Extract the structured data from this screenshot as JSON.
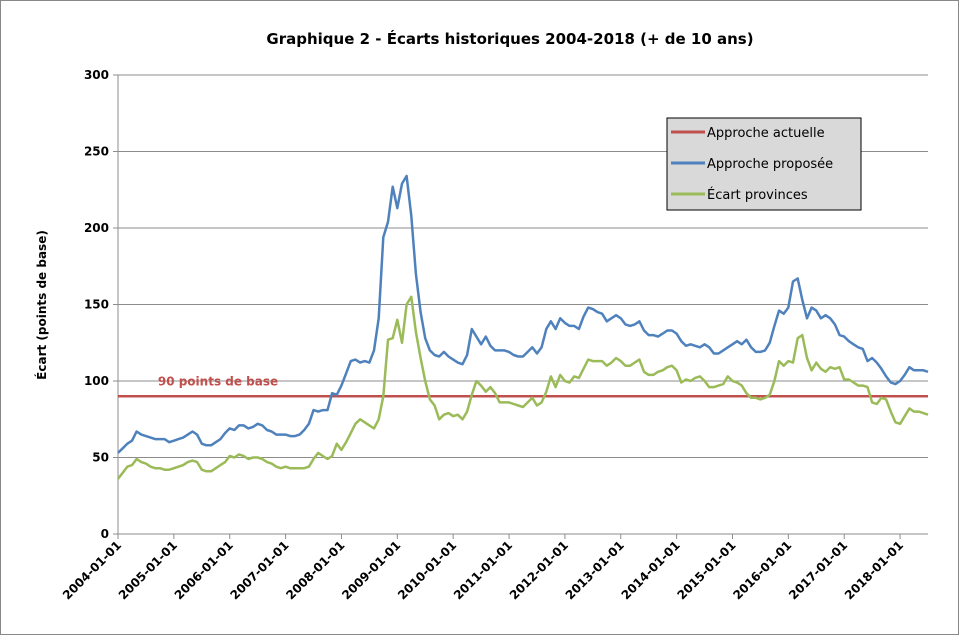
{
  "chart_data": {
    "type": "line",
    "title": "Graphique 2 - Écarts historiques 2004-2018 (+ de 10 ans)",
    "y_label": "Écart (points de base)",
    "annotation": "90 points de base",
    "categories": [
      "2004-01-01",
      null,
      null,
      null,
      null,
      null,
      null,
      null,
      null,
      null,
      null,
      null,
      "2005-01-01",
      null,
      null,
      null,
      null,
      null,
      null,
      null,
      null,
      null,
      null,
      null,
      "2006-01-01",
      null,
      null,
      null,
      null,
      null,
      null,
      null,
      null,
      null,
      null,
      null,
      "2007-01-01",
      null,
      null,
      null,
      null,
      null,
      null,
      null,
      null,
      null,
      null,
      null,
      "2008-01-01",
      null,
      null,
      null,
      null,
      null,
      null,
      null,
      null,
      null,
      null,
      null,
      "2009-01-01",
      null,
      null,
      null,
      null,
      null,
      null,
      null,
      null,
      null,
      null,
      null,
      "2010-01-01",
      null,
      null,
      null,
      null,
      null,
      null,
      null,
      null,
      null,
      null,
      null,
      "2011-01-01",
      null,
      null,
      null,
      null,
      null,
      null,
      null,
      null,
      null,
      null,
      null,
      "2012-01-01",
      null,
      null,
      null,
      null,
      null,
      null,
      null,
      null,
      null,
      null,
      null,
      "2013-01-01",
      null,
      null,
      null,
      null,
      null,
      null,
      null,
      null,
      null,
      null,
      null,
      "2014-01-01",
      null,
      null,
      null,
      null,
      null,
      null,
      null,
      null,
      null,
      null,
      null,
      "2015-01-01",
      null,
      null,
      null,
      null,
      null,
      null,
      null,
      null,
      null,
      null,
      null,
      "2016-01-01",
      null,
      null,
      null,
      null,
      null,
      null,
      null,
      null,
      null,
      null,
      null,
      "2017-01-01",
      null,
      null,
      null,
      null,
      null,
      null,
      null,
      null,
      null,
      null,
      null,
      "2018-01-01",
      null,
      null,
      null,
      null,
      null,
      null
    ],
    "series": [
      {
        "name": "Approche actuelle",
        "color": "#c0504d",
        "values": [
          90,
          90,
          90,
          90,
          90,
          90,
          90,
          90,
          90,
          90,
          90,
          90,
          90,
          90,
          90,
          90,
          90,
          90,
          90,
          90,
          90,
          90,
          90,
          90,
          90,
          90,
          90,
          90,
          90,
          90,
          90,
          90,
          90,
          90,
          90,
          90,
          90,
          90,
          90,
          90,
          90,
          90,
          90,
          90,
          90,
          90,
          90,
          90,
          90,
          90,
          90,
          90,
          90,
          90,
          90,
          90,
          90,
          90,
          90,
          90,
          90,
          90,
          90,
          90,
          90,
          90,
          90,
          90,
          90,
          90,
          90,
          90,
          90,
          90,
          90,
          90,
          90,
          90,
          90,
          90,
          90,
          90,
          90,
          90,
          90,
          90,
          90,
          90,
          90,
          90,
          90,
          90,
          90,
          90,
          90,
          90,
          90,
          90,
          90,
          90,
          90,
          90,
          90,
          90,
          90,
          90,
          90,
          90,
          90,
          90,
          90,
          90,
          90,
          90,
          90,
          90,
          90,
          90,
          90,
          90,
          90,
          90,
          90,
          90,
          90,
          90,
          90,
          90,
          90,
          90,
          90,
          90,
          90,
          90,
          90,
          90,
          90,
          90,
          90,
          90,
          90,
          90,
          90,
          90,
          90,
          90,
          90,
          90,
          90,
          90,
          90,
          90,
          90,
          90,
          90,
          90,
          90,
          90,
          90,
          90,
          90,
          90,
          90,
          90,
          90,
          90,
          90,
          90,
          90,
          90,
          90,
          90,
          90,
          90,
          90
        ]
      },
      {
        "name": "Approche proposée",
        "color": "#4f81bd",
        "values": [
          53,
          56,
          59,
          61,
          67,
          65,
          64,
          63,
          62,
          62,
          62,
          60,
          61,
          62,
          63,
          65,
          67,
          65,
          59,
          58,
          58,
          60,
          62,
          66,
          69,
          68,
          71,
          71,
          69,
          70,
          72,
          71,
          68,
          67,
          65,
          65,
          65,
          64,
          64,
          65,
          68,
          72,
          81,
          80,
          81,
          81,
          92,
          91,
          97,
          105,
          113,
          114,
          112,
          113,
          112,
          120,
          141,
          194,
          204,
          227,
          213,
          229,
          234,
          208,
          170,
          145,
          128,
          120,
          117,
          116,
          119,
          116,
          114,
          112,
          111,
          117,
          134,
          129,
          124,
          129,
          123,
          120,
          120,
          120,
          119,
          117,
          116,
          116,
          119,
          122,
          118,
          122,
          134,
          139,
          134,
          141,
          138,
          136,
          136,
          134,
          142,
          148,
          147,
          145,
          144,
          139,
          141,
          143,
          141,
          137,
          136,
          137,
          139,
          133,
          130,
          130,
          129,
          131,
          133,
          133,
          131,
          126,
          123,
          124,
          123,
          122,
          124,
          122,
          118,
          118,
          120,
          122,
          124,
          126,
          124,
          127,
          122,
          119,
          119,
          120,
          125,
          136,
          146,
          144,
          148,
          165,
          167,
          153,
          141,
          148,
          146,
          141,
          143,
          141,
          137,
          130,
          129,
          126,
          124,
          122,
          121,
          113,
          115,
          112,
          108,
          103,
          99,
          98,
          100,
          104,
          109,
          107,
          107,
          107,
          106
        ]
      },
      {
        "name": "Écart provinces",
        "color": "#9bbb59",
        "values": [
          36,
          40,
          44,
          45,
          49,
          47,
          46,
          44,
          43,
          43,
          42,
          42,
          43,
          44,
          45,
          47,
          48,
          47,
          42,
          41,
          41,
          43,
          45,
          47,
          51,
          50,
          52,
          51,
          49,
          50,
          50,
          49,
          47,
          46,
          44,
          43,
          44,
          43,
          43,
          43,
          43,
          44,
          49,
          53,
          51,
          49,
          51,
          59,
          55,
          60,
          66,
          72,
          75,
          73,
          71,
          69,
          75,
          90,
          127,
          128,
          140,
          125,
          150,
          155,
          132,
          115,
          100,
          88,
          84,
          75,
          78,
          79,
          77,
          78,
          75,
          80,
          91,
          100,
          97,
          93,
          96,
          92,
          86,
          86,
          86,
          85,
          84,
          83,
          86,
          89,
          84,
          86,
          93,
          103,
          96,
          104,
          100,
          99,
          103,
          102,
          108,
          114,
          113,
          113,
          113,
          110,
          112,
          115,
          113,
          110,
          110,
          112,
          114,
          106,
          104,
          104,
          106,
          107,
          109,
          110,
          107,
          99,
          101,
          100,
          102,
          103,
          100,
          96,
          96,
          97,
          98,
          103,
          100,
          99,
          97,
          92,
          89,
          89,
          88,
          89,
          91,
          100,
          113,
          110,
          113,
          112,
          128,
          130,
          115,
          107,
          112,
          108,
          106,
          109,
          108,
          109,
          101,
          101,
          99,
          97,
          97,
          96,
          86,
          85,
          89,
          88,
          80,
          73,
          72,
          77,
          82,
          80,
          80,
          79,
          78
        ]
      }
    ],
    "ylim": [
      0,
      300
    ],
    "yticks": [
      0,
      50,
      100,
      150,
      200,
      250,
      300
    ],
    "grid": true,
    "legend": "upper right"
  }
}
